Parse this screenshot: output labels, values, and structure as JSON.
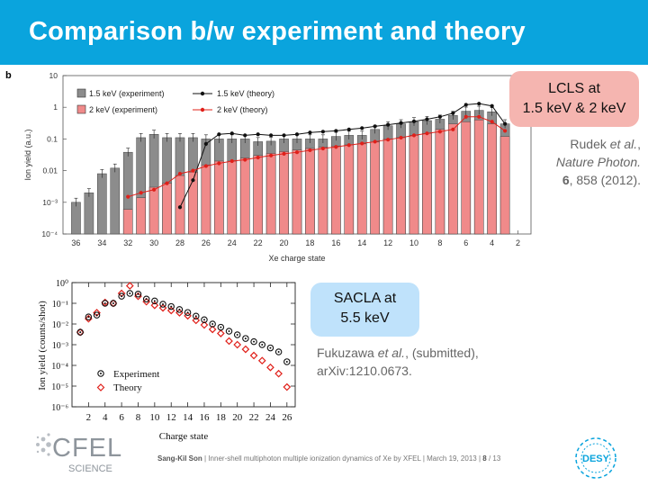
{
  "title": "Comparison b/w experiment and theory",
  "panel_label": "b",
  "callouts": {
    "lcls": {
      "line1": "LCLS at",
      "line2": "1.5 keV & 2 keV"
    },
    "sacla": {
      "line1": "SACLA at",
      "line2": "5.5 keV"
    }
  },
  "citations": {
    "rudek": {
      "authors": "Rudek ",
      "etal": "et al.",
      "comma": ",",
      "journal": "Nature Photon.",
      "vol": "6",
      "pages": ", 858 (2012)."
    },
    "fukuzawa": {
      "authors": "Fukuzawa ",
      "etal": "et al.",
      "rest": ", (submitted),",
      "line2": "arXiv:1210.0673."
    }
  },
  "footer": {
    "author": "Sang-Kil Son",
    "talk": "Inner-shell multiphoton multiple ionization dynamics of Xe by XFEL",
    "date": "March 19, 2013",
    "page": "8",
    "total": "/ 13"
  },
  "logos": {
    "cfel": "CFEL",
    "cfel_sub": "SCIENCE",
    "desy": "DESY"
  },
  "colors": {
    "title_bar": "#0aa4dd",
    "grey_bar": "#8c8c8c",
    "pink_bar": "#f08a8a",
    "red_line": "#e0201a",
    "black_line": "#111111",
    "lcls_box": "#f5b5b0",
    "sacla_box": "#bfe2fb"
  },
  "chart_data": [
    {
      "type": "bar",
      "xlabel": "Xe charge state",
      "ylabel": "Ion yield (a.u.)",
      "x_ticks": [
        "36",
        "34",
        "32",
        "30",
        "28",
        "26",
        "24",
        "22",
        "20",
        "18",
        "16",
        "14",
        "12",
        "10",
        "8",
        "6",
        "4",
        "2"
      ],
      "y_ticks": [
        "10",
        "1",
        "0.1",
        "0.01",
        "10⁻³",
        "10⁻⁴"
      ],
      "y_scale": "log",
      "ylim": [
        0.0001,
        10
      ],
      "xlim": [
        37,
        1
      ],
      "x_reversed": true,
      "legend": [
        "1.5 keV (experiment)",
        "2 keV (experiment)",
        "1.5 keV (theory)",
        "2 keV (theory)"
      ],
      "legend_position": "top-left",
      "series": [
        {
          "name": "1.5 keV (experiment)",
          "style": "bar",
          "x": [
            36,
            35,
            34,
            33,
            32,
            31,
            30,
            29,
            28,
            27,
            26,
            25,
            24,
            23,
            22,
            21,
            20,
            19,
            18,
            17,
            16,
            15,
            14,
            13,
            12,
            11,
            10,
            9,
            8,
            7,
            6,
            5,
            4,
            3
          ],
          "values": [
            0.001,
            0.002,
            0.008,
            0.012,
            0.038,
            0.11,
            0.14,
            0.11,
            0.11,
            0.11,
            0.1,
            0.1,
            0.1,
            0.1,
            0.082,
            0.085,
            0.1,
            0.1,
            0.1,
            0.1,
            0.12,
            0.13,
            0.13,
            0.2,
            0.26,
            0.3,
            0.35,
            0.38,
            0.42,
            0.55,
            0.75,
            0.8,
            0.72,
            0.3
          ]
        },
        {
          "name": "2 keV (experiment)",
          "style": "bar",
          "x": [
            32,
            31,
            30,
            29,
            28,
            27,
            26,
            25,
            24,
            23,
            22,
            21,
            20,
            19,
            18,
            17,
            16,
            15,
            14,
            13,
            12,
            11,
            10,
            9,
            8,
            7,
            6,
            5,
            4,
            3
          ],
          "values": [
            0.0006,
            0.0014,
            0.003,
            0.004,
            0.007,
            0.009,
            0.015,
            0.02,
            0.02,
            0.025,
            0.03,
            0.035,
            0.04,
            0.045,
            0.05,
            0.055,
            0.06,
            0.065,
            0.07,
            0.08,
            0.1,
            0.11,
            0.13,
            0.15,
            0.2,
            0.3,
            0.35,
            0.4,
            0.3,
            0.12
          ]
        },
        {
          "name": "1.5 keV (theory)",
          "style": "line",
          "x": [
            28,
            27,
            26,
            25,
            24,
            23,
            22,
            21,
            20,
            19,
            18,
            17,
            16,
            15,
            14,
            13,
            12,
            11,
            10,
            9,
            8,
            7,
            6,
            5,
            4,
            3
          ],
          "values": [
            0.0007,
            0.005,
            0.07,
            0.14,
            0.15,
            0.13,
            0.14,
            0.13,
            0.13,
            0.14,
            0.16,
            0.17,
            0.18,
            0.2,
            0.22,
            0.25,
            0.28,
            0.32,
            0.36,
            0.42,
            0.5,
            0.65,
            1.2,
            1.3,
            1.1,
            0.3
          ]
        },
        {
          "name": "2 keV (theory)",
          "style": "line",
          "x": [
            32,
            31,
            30,
            29,
            28,
            27,
            26,
            25,
            24,
            23,
            22,
            21,
            20,
            19,
            18,
            17,
            16,
            15,
            14,
            13,
            12,
            11,
            10,
            9,
            8,
            7,
            6,
            5,
            4,
            3
          ],
          "values": [
            0.0015,
            0.002,
            0.0025,
            0.004,
            0.008,
            0.01,
            0.014,
            0.017,
            0.02,
            0.022,
            0.026,
            0.03,
            0.034,
            0.038,
            0.044,
            0.05,
            0.056,
            0.064,
            0.072,
            0.082,
            0.095,
            0.11,
            0.13,
            0.15,
            0.17,
            0.2,
            0.5,
            0.5,
            0.35,
            0.18
          ]
        }
      ]
    },
    {
      "type": "scatter",
      "xlabel": "Charge state",
      "ylabel": "Ion yield (counts/shot)",
      "x_ticks": [
        "2",
        "4",
        "6",
        "8",
        "10",
        "12",
        "14",
        "16",
        "18",
        "20",
        "22",
        "24",
        "26"
      ],
      "y_ticks": [
        "10⁰",
        "10⁻¹",
        "10⁻²",
        "10⁻³",
        "10⁻⁴",
        "10⁻⁵",
        "10⁻⁶"
      ],
      "y_scale": "log",
      "ylim": [
        1e-06,
        1
      ],
      "xlim": [
        0,
        27
      ],
      "legend": [
        "Experiment",
        "Theory"
      ],
      "legend_position": "bottom-left",
      "series": [
        {
          "name": "Experiment",
          "marker": "circle",
          "x": [
            1,
            2,
            3,
            4,
            5,
            6,
            7,
            8,
            9,
            10,
            11,
            12,
            13,
            14,
            15,
            16,
            17,
            18,
            19,
            20,
            21,
            22,
            23,
            24,
            25,
            26
          ],
          "values": [
            0.004,
            0.022,
            0.027,
            0.1,
            0.1,
            0.22,
            0.3,
            0.28,
            0.16,
            0.13,
            0.09,
            0.07,
            0.05,
            0.036,
            0.024,
            0.016,
            0.01,
            0.007,
            0.0045,
            0.003,
            0.002,
            0.0014,
            0.001,
            0.0007,
            0.00045,
            0.00015
          ]
        },
        {
          "name": "Theory",
          "marker": "diamond",
          "x": [
            1,
            2,
            3,
            4,
            5,
            6,
            7,
            8,
            9,
            10,
            11,
            12,
            13,
            14,
            15,
            16,
            17,
            18,
            19,
            20,
            21,
            22,
            23,
            24,
            25,
            26
          ],
          "values": [
            0.004,
            0.018,
            0.035,
            0.11,
            0.1,
            0.3,
            0.7,
            0.22,
            0.12,
            0.08,
            0.06,
            0.045,
            0.035,
            0.025,
            0.015,
            0.009,
            0.0055,
            0.0035,
            0.0015,
            0.001,
            0.0006,
            0.0003,
            0.00017,
            8e-05,
            4e-05,
            9e-06
          ]
        }
      ]
    }
  ]
}
